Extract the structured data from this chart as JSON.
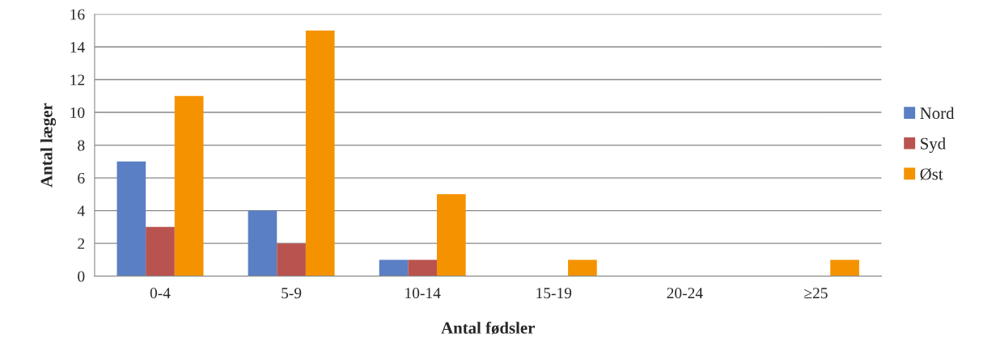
{
  "chart_data": {
    "type": "bar",
    "xlabel": "Antal fødsler",
    "ylabel": "Antal læger",
    "categories": [
      "0-4",
      "5-9",
      "10-14",
      "15-19",
      "20-24",
      "≥25"
    ],
    "series": [
      {
        "name": "Nord",
        "color": "#5b7fc4",
        "values": [
          7,
          4,
          1,
          0,
          0,
          0
        ]
      },
      {
        "name": "Syd",
        "color": "#b9534f",
        "values": [
          3,
          2,
          1,
          0,
          0,
          0
        ]
      },
      {
        "name": "Øst",
        "color": "#f59200",
        "values": [
          11,
          15,
          5,
          1,
          0,
          1
        ]
      }
    ],
    "ylim": [
      0,
      16
    ],
    "yticks": [
      0,
      2,
      4,
      6,
      8,
      10,
      12,
      14,
      16
    ],
    "grid": "y",
    "legend": "right"
  }
}
